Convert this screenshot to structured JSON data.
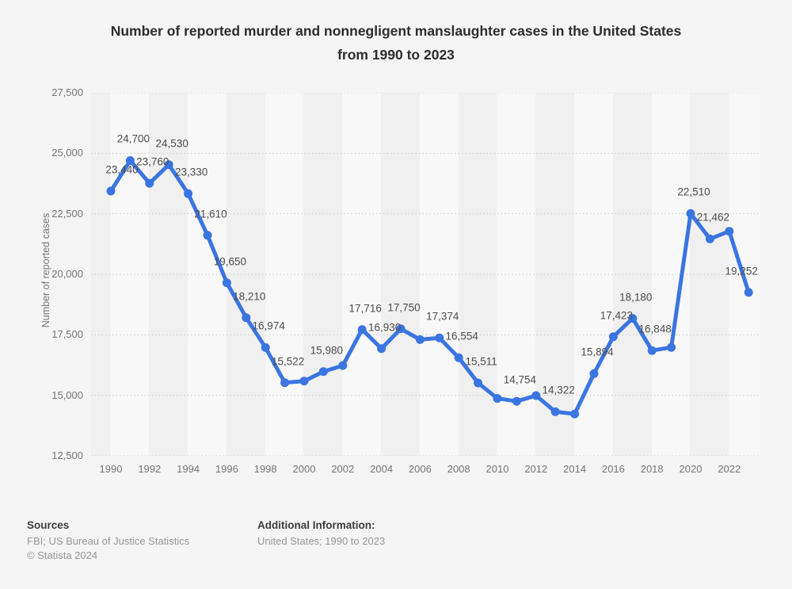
{
  "chart_data": {
    "type": "line",
    "title": "Number of reported murder and nonnegligent manslaughter cases in the United States from 1990 to 2023",
    "ylabel": "Number of reported cases",
    "xlabel": "",
    "ylim": [
      12500,
      27500
    ],
    "yticks": [
      "12,500",
      "15,000",
      "17,500",
      "20,000",
      "22,500",
      "25,000",
      "27,500"
    ],
    "xticks": [
      1990,
      1992,
      1994,
      1996,
      1998,
      2000,
      2002,
      2004,
      2006,
      2008,
      2010,
      2012,
      2014,
      2016,
      2018,
      2020,
      2022
    ],
    "grid": "horizontal-dotted",
    "legend": "none",
    "line_color": "#3a75e2",
    "points": [
      {
        "year": 1990,
        "value": 23440,
        "label": "23,440"
      },
      {
        "year": 1991,
        "value": 24700,
        "label": "24,700"
      },
      {
        "year": 1992,
        "value": 23760,
        "label": "23,760"
      },
      {
        "year": 1993,
        "value": 24530,
        "label": "24,530"
      },
      {
        "year": 1994,
        "value": 23330,
        "label": "23,330"
      },
      {
        "year": 1995,
        "value": 21610,
        "label": "21,610"
      },
      {
        "year": 1996,
        "value": 19650,
        "label": "19,650"
      },
      {
        "year": 1997,
        "value": 18210,
        "label": "18,210"
      },
      {
        "year": 1998,
        "value": 16974,
        "label": "16,974"
      },
      {
        "year": 1999,
        "value": 15522,
        "label": "15,522"
      },
      {
        "year": 2000,
        "value": 15590,
        "label": ""
      },
      {
        "year": 2001,
        "value": 15980,
        "label": "15,980"
      },
      {
        "year": 2002,
        "value": 16230,
        "label": ""
      },
      {
        "year": 2003,
        "value": 17716,
        "label": "17,716"
      },
      {
        "year": 2004,
        "value": 16930,
        "label": "16,930"
      },
      {
        "year": 2005,
        "value": 17750,
        "label": "17,750"
      },
      {
        "year": 2006,
        "value": 17300,
        "label": ""
      },
      {
        "year": 2007,
        "value": 17374,
        "label": "17,374"
      },
      {
        "year": 2008,
        "value": 16554,
        "label": "16,554"
      },
      {
        "year": 2009,
        "value": 15511,
        "label": "15,511"
      },
      {
        "year": 2010,
        "value": 14870,
        "label": ""
      },
      {
        "year": 2011,
        "value": 14754,
        "label": "14,754"
      },
      {
        "year": 2012,
        "value": 14990,
        "label": ""
      },
      {
        "year": 2013,
        "value": 14322,
        "label": "14,322"
      },
      {
        "year": 2014,
        "value": 14230,
        "label": ""
      },
      {
        "year": 2015,
        "value": 15894,
        "label": "15,894"
      },
      {
        "year": 2016,
        "value": 17423,
        "label": "17,423"
      },
      {
        "year": 2017,
        "value": 18180,
        "label": "18,180"
      },
      {
        "year": 2018,
        "value": 16848,
        "label": "16,848"
      },
      {
        "year": 2019,
        "value": 16980,
        "label": ""
      },
      {
        "year": 2020,
        "value": 22510,
        "label": "22,510"
      },
      {
        "year": 2021,
        "value": 21462,
        "label": "21,462"
      },
      {
        "year": 2022,
        "value": 21780,
        "label": ""
      },
      {
        "year": 2023,
        "value": 19252,
        "label": "19,252"
      }
    ]
  },
  "footer": {
    "sources_heading": "Sources",
    "sources_line1": "FBI; US Bureau of Justice Statistics",
    "sources_line2": "© Statista 2024",
    "additional_heading": "Additional Information:",
    "additional_line1": "United States; 1990 to 2023"
  }
}
